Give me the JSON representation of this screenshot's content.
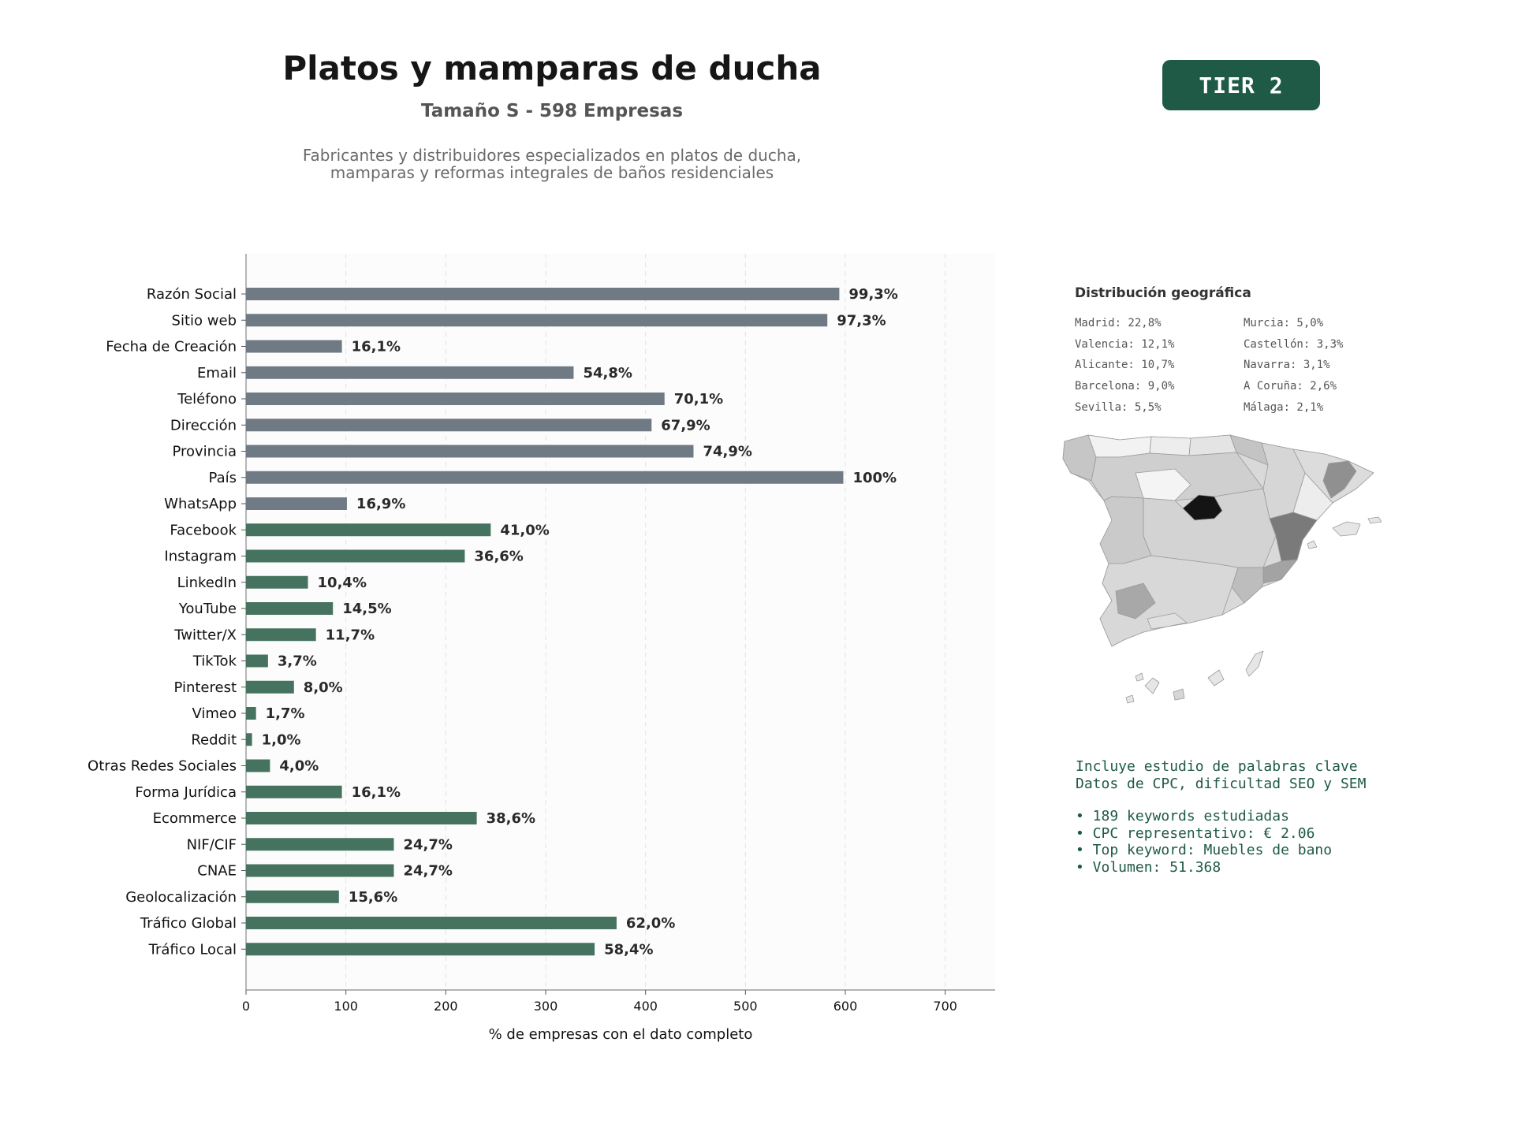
{
  "header": {
    "title": "Platos y mamparas de ducha",
    "subtitle": "Tamaño S - 598 Empresas",
    "description": [
      "Fabricantes y distribuidores especializados en platos de ducha,",
      "mamparas y reformas integrales de baños residenciales"
    ],
    "tier_badge": "TIER 2"
  },
  "colors": {
    "gray_bar": "#6f7a84",
    "green_bar": "#45735f",
    "badge": "#1e5a45",
    "label_text": "#2a2a2a"
  },
  "chart_data": {
    "type": "bar",
    "orientation": "horizontal",
    "xlabel": "% de empresas con el dato completo",
    "xlim": [
      0,
      750
    ],
    "xticks": [
      0,
      100,
      200,
      300,
      400,
      500,
      600,
      700
    ],
    "grid": "vertical dashed",
    "categories": [
      "Razón Social",
      "Sitio web",
      "Fecha de Creación",
      "Email",
      "Teléfono",
      "Dirección",
      "Provincia",
      "País",
      "WhatsApp",
      "Facebook",
      "Instagram",
      "LinkedIn",
      "YouTube",
      "Twitter/X",
      "TikTok",
      "Pinterest",
      "Vimeo",
      "Reddit",
      "Otras Redes Sociales",
      "Forma Jurídica",
      "Ecommerce",
      "NIF/CIF",
      "CNAE",
      "Geolocalización",
      "Tráfico Global",
      "Tráfico Local"
    ],
    "values": [
      594,
      582,
      96,
      328,
      419,
      406,
      448,
      598,
      101,
      245,
      219,
      62,
      87,
      70,
      22,
      48,
      10,
      6,
      24,
      96,
      231,
      148,
      148,
      93,
      371,
      349
    ],
    "labels": [
      "99,3%",
      "97,3%",
      "16,1%",
      "54,8%",
      "70,1%",
      "67,9%",
      "74,9%",
      "100%",
      "16,9%",
      "41,0%",
      "36,6%",
      "10,4%",
      "14,5%",
      "11,7%",
      "3,7%",
      "8,0%",
      "1,7%",
      "1,0%",
      "4,0%",
      "16,1%",
      "38,6%",
      "24,7%",
      "24,7%",
      "15,6%",
      "62,0%",
      "58,4%"
    ],
    "group": [
      "gray",
      "gray",
      "gray",
      "gray",
      "gray",
      "gray",
      "gray",
      "gray",
      "gray",
      "green",
      "green",
      "green",
      "green",
      "green",
      "green",
      "green",
      "green",
      "green",
      "green",
      "green",
      "green",
      "green",
      "green",
      "green",
      "green",
      "green"
    ]
  },
  "geo": {
    "title": "Distribución geográfica",
    "entries": [
      "Madrid: 22,8%",
      "Murcia: 5,0%",
      "Valencia: 12,1%",
      "Castellón: 3,3%",
      "Alicante: 10,7%",
      "Navarra: 3,1%",
      "Barcelona: 9,0%",
      "A Coruña: 2,6%",
      "Sevilla: 5,5%",
      "Málaga: 2,1%"
    ]
  },
  "keywords": {
    "intro": [
      "Incluye estudio de palabras clave",
      "Datos de CPC, dificultad SEO y SEM"
    ],
    "bullets": [
      "• 189 keywords estudiadas",
      "• CPC representativo: € 2.06",
      "• Top keyword: Muebles de bano",
      "• Volumen: 51.368"
    ]
  }
}
